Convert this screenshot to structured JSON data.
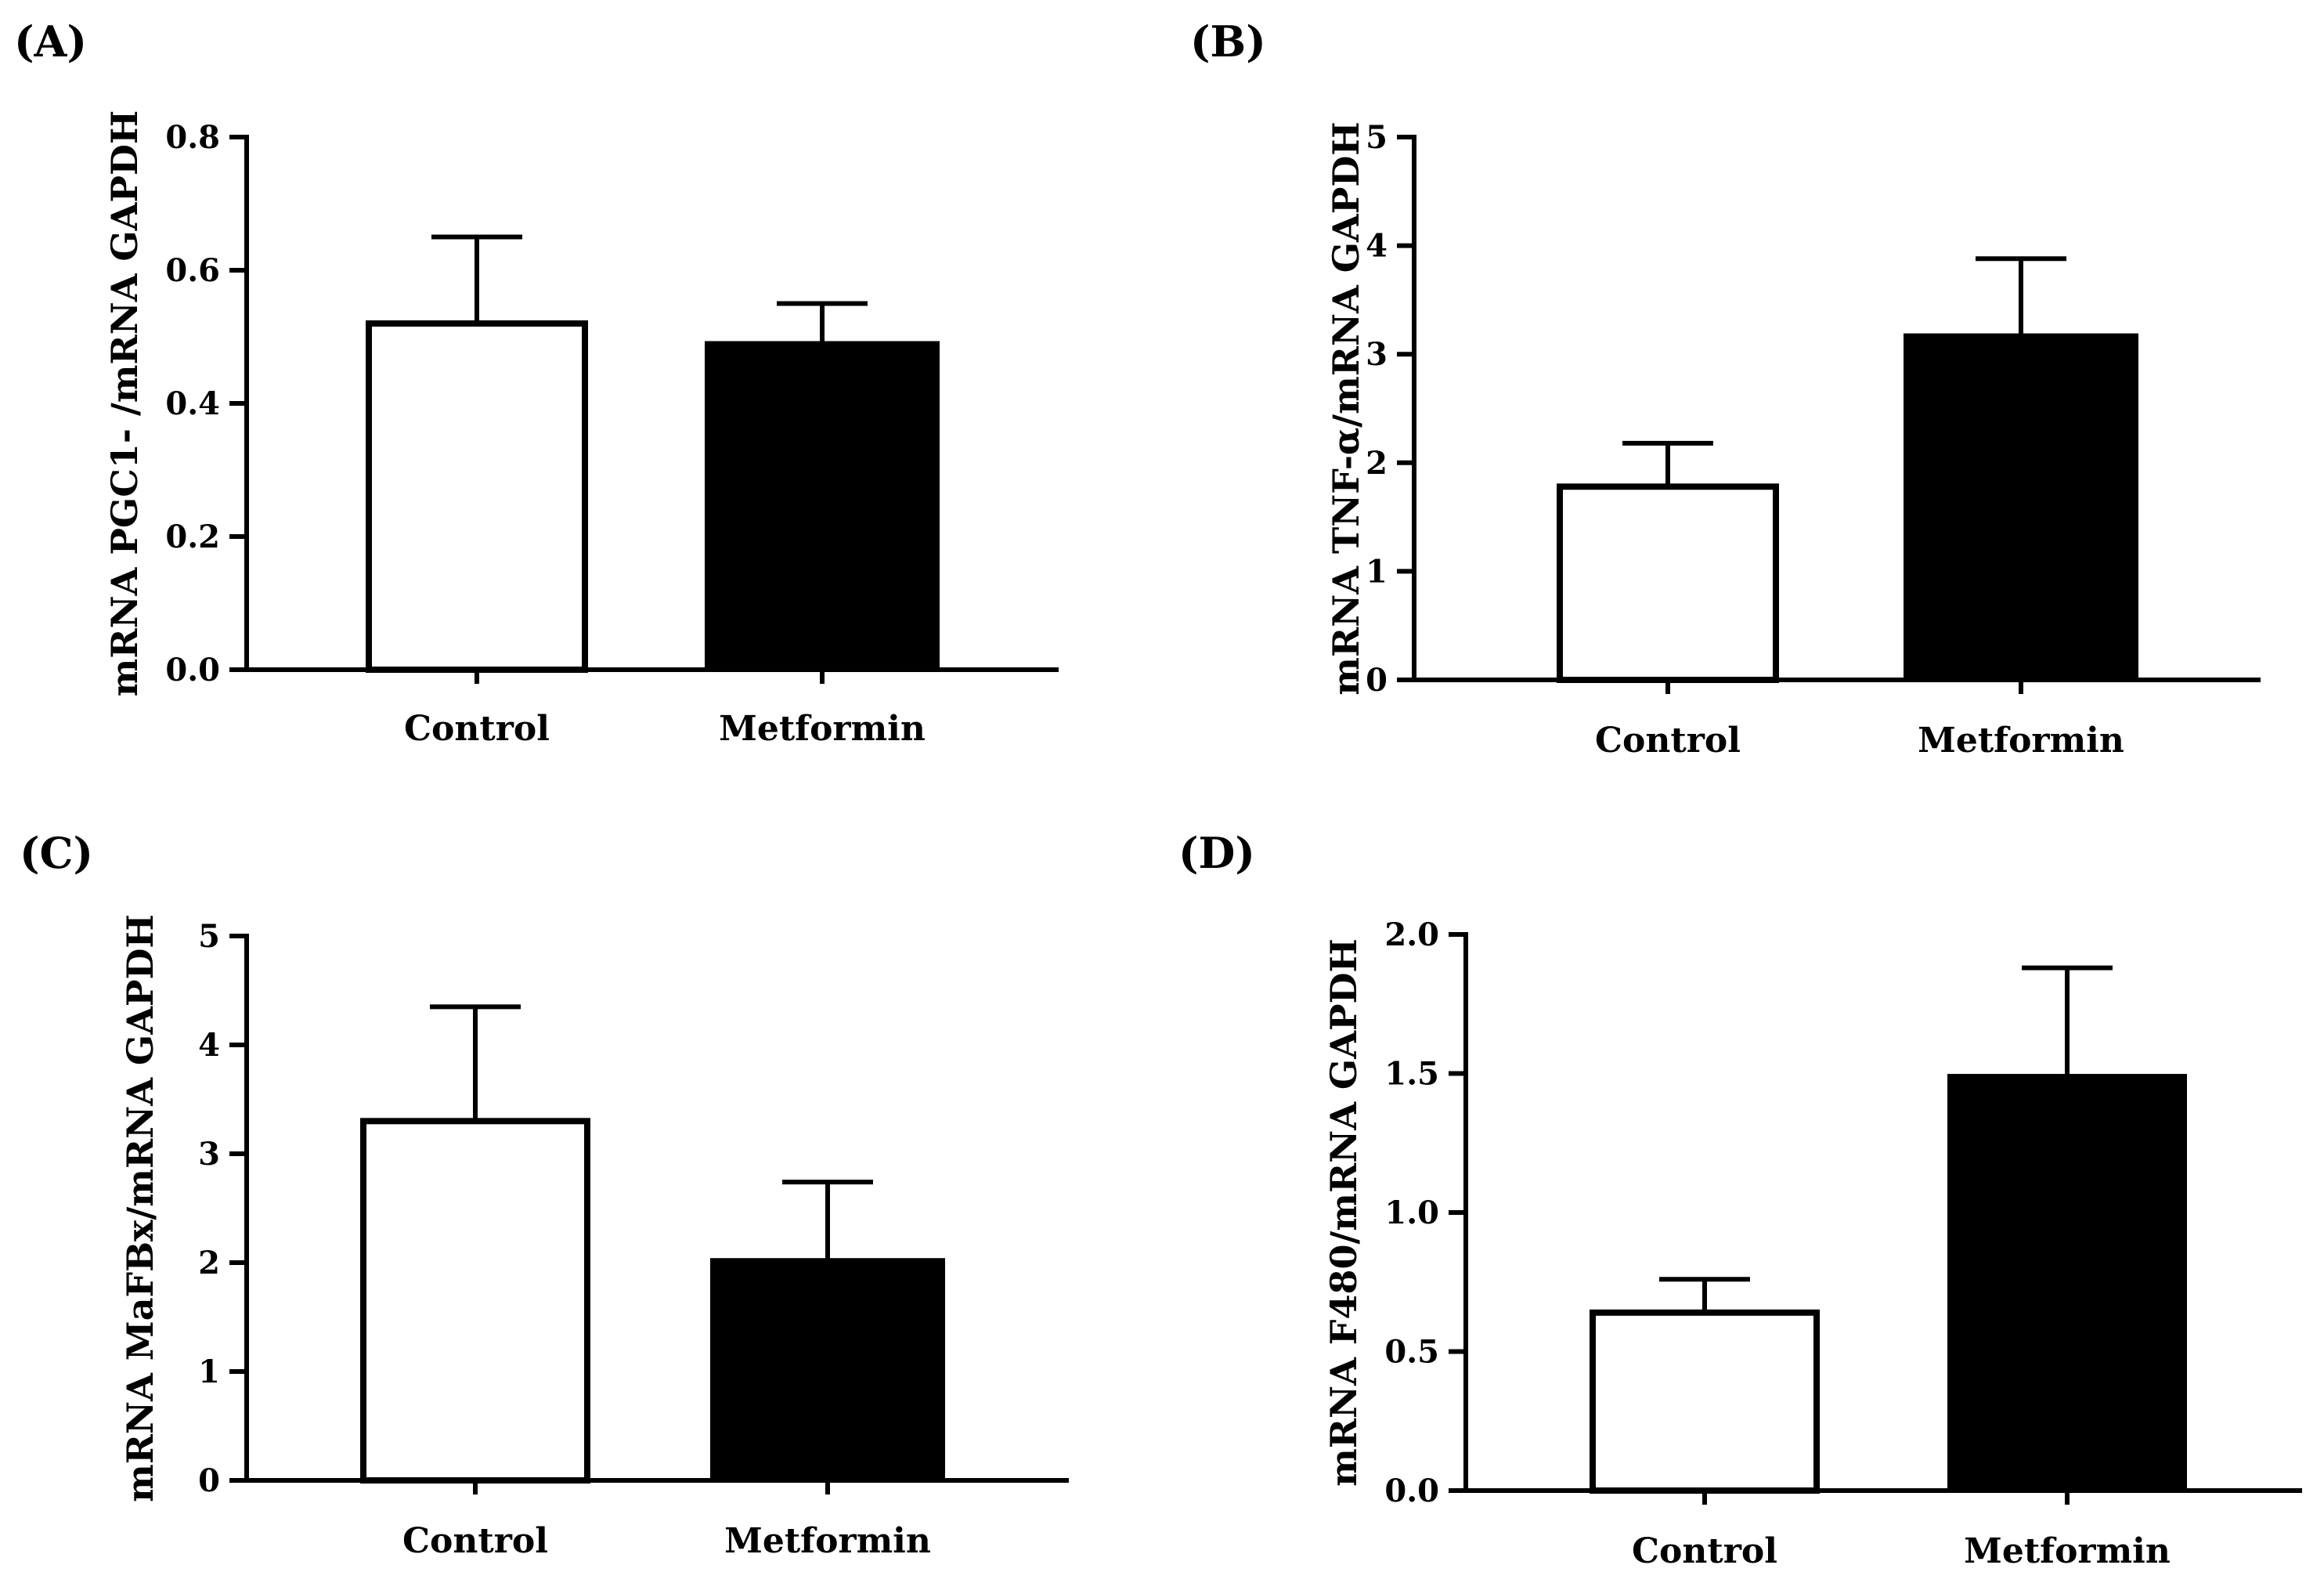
{
  "chart_data": [
    {
      "type": "bar",
      "panel": "(A)",
      "title": "",
      "xlabel": "",
      "ylabel": "mRNA PGC1-  /mRNA  GAPDH",
      "ylim": [
        0,
        0.8
      ],
      "yticks": [
        "0.0",
        "0.2",
        "0.4",
        "0.6",
        "0.8"
      ],
      "categories": [
        "Control",
        "Metformin"
      ],
      "values": [
        0.52,
        0.49
      ],
      "errors": [
        0.13,
        0.06
      ],
      "bar_colors": [
        "#ffffff",
        "#000000"
      ]
    },
    {
      "type": "bar",
      "panel": "(B)",
      "title": "",
      "xlabel": "",
      "ylabel": "mRNA TNF-α/mRNA  GAPDH",
      "ylim": [
        0,
        5
      ],
      "yticks": [
        "0",
        "1",
        "2",
        "3",
        "4",
        "5"
      ],
      "categories": [
        "Control",
        "Metformin"
      ],
      "values": [
        1.78,
        3.17
      ],
      "errors": [
        0.4,
        0.71
      ],
      "bar_colors": [
        "#ffffff",
        "#000000"
      ]
    },
    {
      "type": "bar",
      "panel": "(C)",
      "title": "",
      "xlabel": "",
      "ylabel": "mRNA MaFBx/mRNA GAPDH",
      "ylim": [
        0,
        5
      ],
      "yticks": [
        "0",
        "1",
        "2",
        "3",
        "4",
        "5"
      ],
      "categories": [
        "Control",
        "Metformin"
      ],
      "values": [
        3.3,
        2.02
      ],
      "errors": [
        1.05,
        0.72
      ],
      "bar_colors": [
        "#ffffff",
        "#000000"
      ]
    },
    {
      "type": "bar",
      "panel": "(D)",
      "title": "",
      "xlabel": "",
      "ylabel": "mRNA F480/mRNA GAPDH",
      "ylim": [
        0,
        2.0
      ],
      "yticks": [
        "0.0",
        "0.5",
        "1.0",
        "1.5",
        "2.0"
      ],
      "categories": [
        "Control",
        "Metformin"
      ],
      "values": [
        0.64,
        1.49
      ],
      "errors": [
        0.12,
        0.39
      ],
      "bar_colors": [
        "#ffffff",
        "#000000"
      ]
    }
  ]
}
